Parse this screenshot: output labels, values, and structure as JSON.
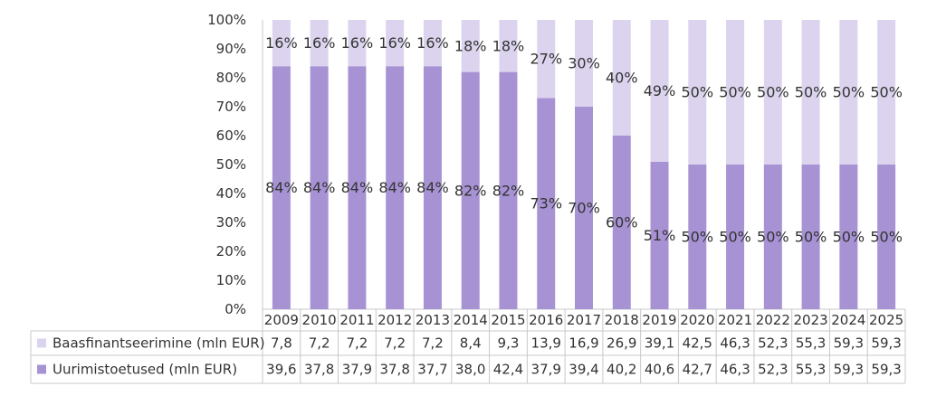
{
  "chart_data": {
    "type": "bar",
    "stacked": true,
    "percent_stacked": true,
    "categories": [
      "2009",
      "2010",
      "2011",
      "2012",
      "2013",
      "2014",
      "2015",
      "2016",
      "2017",
      "2018",
      "2019",
      "2020",
      "2021",
      "2022",
      "2023",
      "2024",
      "2025"
    ],
    "y_ticks": [
      "0%",
      "10%",
      "20%",
      "30%",
      "40%",
      "50%",
      "60%",
      "70%",
      "80%",
      "90%",
      "100%"
    ],
    "ylim": [
      0,
      100
    ],
    "grid": false,
    "legend": "data-table-left",
    "series": [
      {
        "name": "Baasfinantseerimine (mln EUR)",
        "color": "#dcd4ee",
        "values": [
          "7,8",
          "7,2",
          "7,2",
          "7,2",
          "7,2",
          "8,4",
          "9,3",
          "13,9",
          "16,9",
          "26,9",
          "39,1",
          "42,5",
          "46,3",
          "52,3",
          "55,3",
          "59,3",
          "59,3"
        ],
        "percent_labels": [
          "16%",
          "16%",
          "16%",
          "16%",
          "16%",
          "18%",
          "18%",
          "27%",
          "30%",
          "40%",
          "49%",
          "50%",
          "50%",
          "50%",
          "50%",
          "50%",
          "50%"
        ]
      },
      {
        "name": "Uurimistoetused (mln EUR)",
        "color": "#a793d4",
        "values": [
          "39,6",
          "37,8",
          "37,9",
          "37,8",
          "37,7",
          "38,0",
          "42,4",
          "37,9",
          "39,4",
          "40,2",
          "40,6",
          "42,7",
          "46,3",
          "52,3",
          "55,3",
          "59,3",
          "59,3"
        ],
        "percent_labels": [
          "84%",
          "84%",
          "84%",
          "84%",
          "84%",
          "82%",
          "82%",
          "73%",
          "70%",
          "60%",
          "51%",
          "50%",
          "50%",
          "50%",
          "50%",
          "50%",
          "50%"
        ]
      }
    ]
  }
}
